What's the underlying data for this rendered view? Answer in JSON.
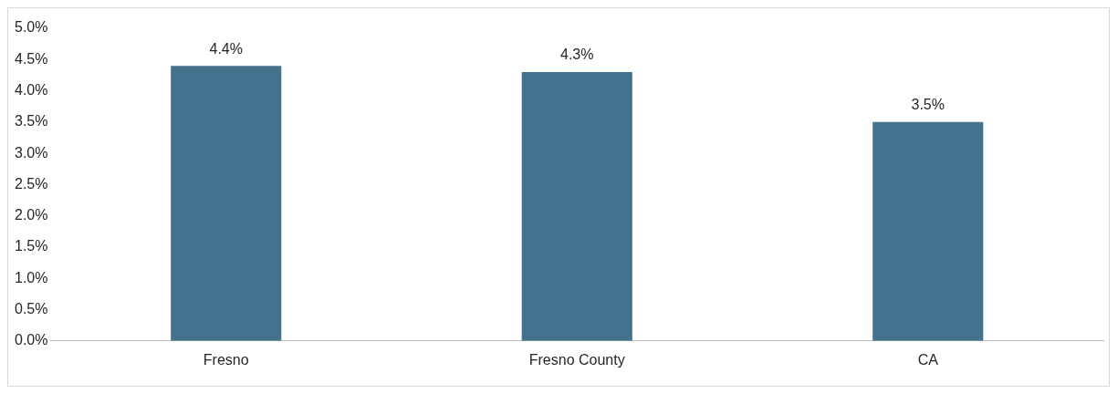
{
  "chart_data": {
    "type": "bar",
    "categories": [
      "Fresno",
      "Fresno County",
      "CA"
    ],
    "values": [
      4.4,
      4.3,
      3.5
    ],
    "value_labels": [
      "4.4%",
      "4.3%",
      "3.5%"
    ],
    "color": "#44718c",
    "ylim": [
      0,
      5
    ],
    "yticks": [
      {
        "value": 0,
        "label": "0.0%"
      },
      {
        "value": 0.5,
        "label": "0.5%"
      },
      {
        "value": 1,
        "label": "1.0%"
      },
      {
        "value": 1.5,
        "label": "1.5%"
      },
      {
        "value": 2,
        "label": "2.0%"
      },
      {
        "value": 2.5,
        "label": "2.5%"
      },
      {
        "value": 3,
        "label": "3.0%"
      },
      {
        "value": 3.5,
        "label": "3.5%"
      },
      {
        "value": 4,
        "label": "4.0%"
      },
      {
        "value": 4.5,
        "label": "4.5%"
      },
      {
        "value": 5,
        "label": "5.0%"
      }
    ],
    "grid": false,
    "legend": false
  }
}
